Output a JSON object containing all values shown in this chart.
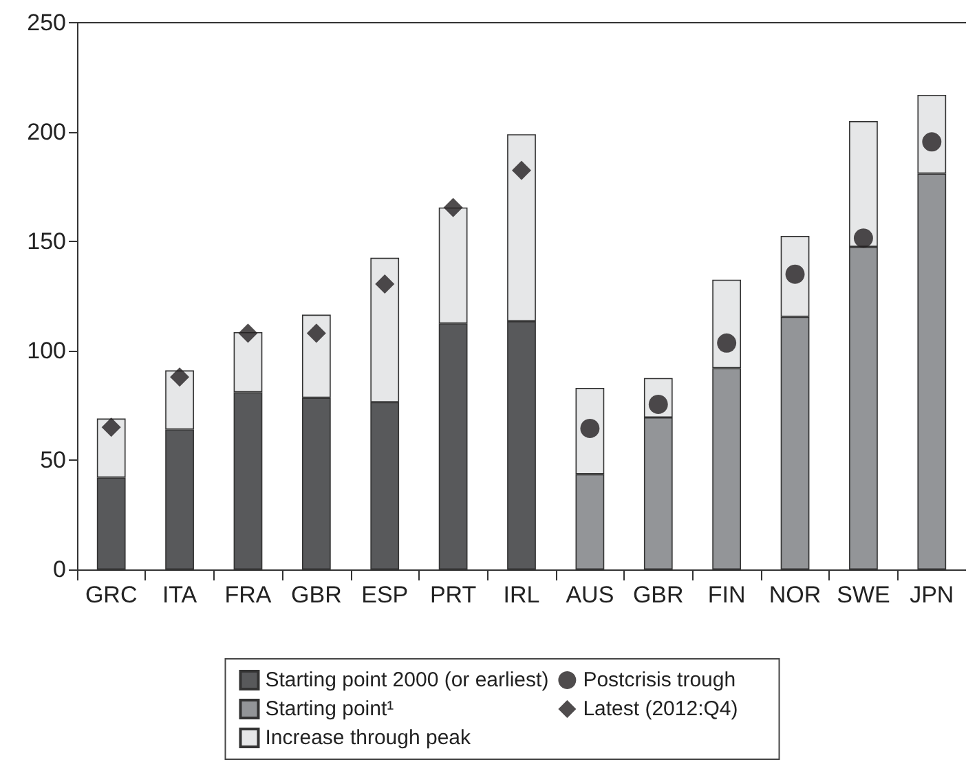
{
  "chart_data": {
    "type": "bar",
    "stacked": true,
    "categories": [
      "GRC",
      "ITA",
      "FRA",
      "GBR",
      "ESP",
      "PRT",
      "IRL",
      "AUS",
      "GBR",
      "FIN",
      "NOR",
      "SWE",
      "JPN"
    ],
    "series": [
      {
        "name": "Starting point 2000 (or earliest)",
        "color": "#58595b",
        "values": [
          42,
          64,
          81,
          78.5,
          76.5,
          112.5,
          113.5,
          null,
          null,
          null,
          null,
          null,
          null
        ]
      },
      {
        "name": "Starting point¹",
        "color": "#939598",
        "values": [
          null,
          null,
          null,
          null,
          null,
          null,
          null,
          43.5,
          69.5,
          92,
          115.5,
          147.5,
          181
        ]
      },
      {
        "name": "Increase through peak",
        "color": "#e6e7e8",
        "values": [
          27,
          27,
          27.5,
          38,
          66,
          53,
          85.5,
          39.5,
          18,
          40.5,
          37,
          57.5,
          36
        ]
      },
      {
        "name": "Postcrisis trough",
        "type": "scatter",
        "marker": "circle",
        "color": "#231f20",
        "values": [
          null,
          null,
          null,
          null,
          null,
          null,
          null,
          64.5,
          75.5,
          103.5,
          135,
          151.5,
          195.5
        ]
      },
      {
        "name": "Latest (2012:Q4)",
        "type": "scatter",
        "marker": "diamond",
        "color": "#231f20",
        "values": [
          65,
          88,
          108,
          108,
          130.5,
          165.5,
          182.5,
          null,
          null,
          null,
          null,
          null,
          null
        ]
      }
    ],
    "ylim": [
      0,
      250
    ],
    "yticks": [
      0,
      50,
      100,
      150,
      200,
      250
    ],
    "grid": false,
    "legend": "bottom"
  }
}
